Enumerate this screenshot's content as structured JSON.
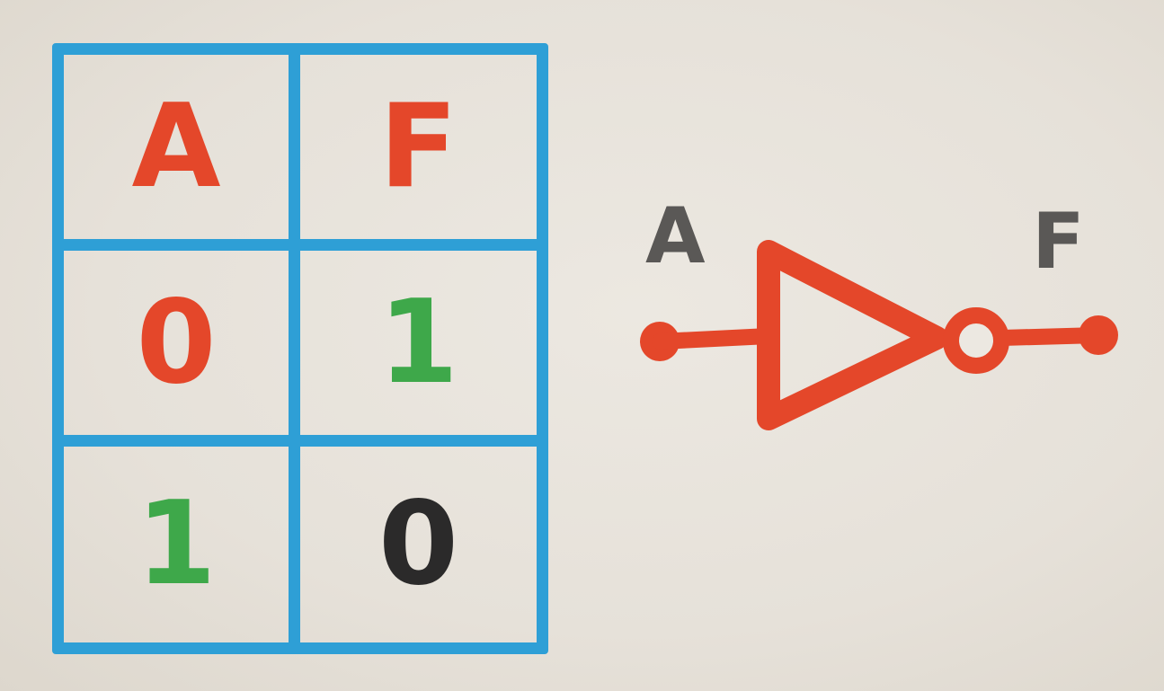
{
  "truth_table": {
    "header": {
      "input": "A",
      "output": "F"
    },
    "rows": [
      {
        "input": "0",
        "output": "1"
      },
      {
        "input": "1",
        "output": "0"
      }
    ]
  },
  "gate": {
    "input_label": "A",
    "output_label": "F"
  },
  "colors": {
    "grid": "#2e9fd6",
    "header_text": "#e4472a",
    "gate_stroke": "#e4472a",
    "zero_input": "#e4472a",
    "one": "#3ea84a",
    "zero_output": "#2b2a2a",
    "gate_labels": "#5a5856"
  }
}
